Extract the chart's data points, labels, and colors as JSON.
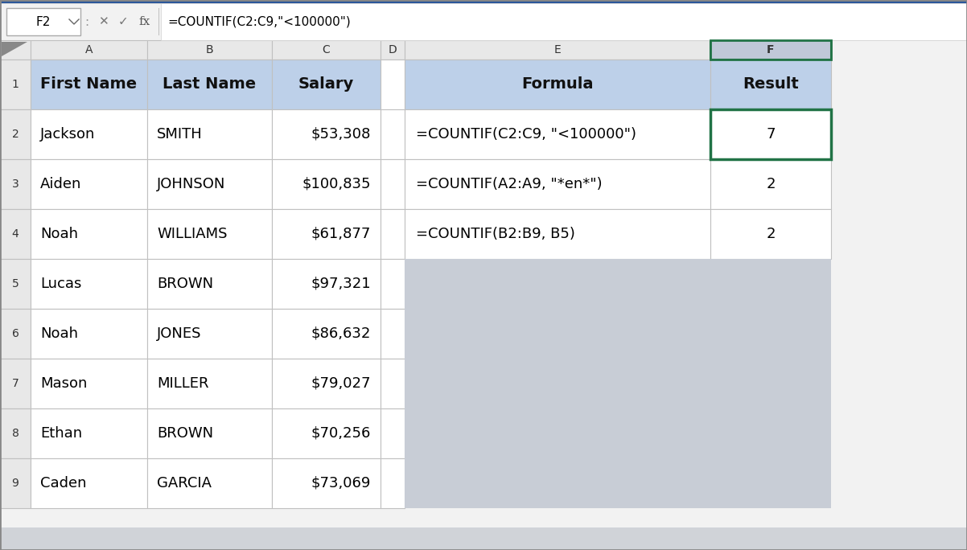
{
  "outer_bg": "#c8cdd6",
  "window_bg": "#ffffff",
  "formula_bar_bg": "#f2f2f2",
  "formula_bar_text": "=COUNTIF(C2:C9,\"<100000\")",
  "formula_bar_cell": "F2",
  "header_bg": "#bdd0e9",
  "col_header_bg": "#e8e8e8",
  "col_header_selected_bg": "#c0c8d8",
  "row_header_bg": "#e8e8e8",
  "cell_white": "#ffffff",
  "grid_color": "#c0c0c0",
  "border_dark": "#888888",
  "green_border": "#217346",
  "left_headers": [
    "First Name",
    "Last Name",
    "Salary"
  ],
  "left_data": [
    [
      "Jackson",
      "SMITH",
      "$53,308"
    ],
    [
      "Aiden",
      "JOHNSON",
      "$100,835"
    ],
    [
      "Noah",
      "WILLIAMS",
      "$61,877"
    ],
    [
      "Lucas",
      "BROWN",
      "$97,321"
    ],
    [
      "Noah",
      "JONES",
      "$86,632"
    ],
    [
      "Mason",
      "MILLER",
      "$79,027"
    ],
    [
      "Ethan",
      "BROWN",
      "$70,256"
    ],
    [
      "Caden",
      "GARCIA",
      "$73,069"
    ]
  ],
  "right_headers": [
    "Formula",
    "Result"
  ],
  "right_data": [
    [
      "=COUNTIF(C2:C9, \"<100000\")",
      "7"
    ],
    [
      "=COUNTIF(A2:A9, \"*en*\")",
      "2"
    ],
    [
      "=COUNTIF(B2:B9, B5)",
      "2"
    ]
  ],
  "col_labels": [
    "A",
    "B",
    "C",
    "D",
    "E",
    "F"
  ],
  "row_labels": [
    "1",
    "2",
    "3",
    "4",
    "5",
    "6",
    "7",
    "8",
    "9"
  ],
  "font_size": 13,
  "header_font_size": 14
}
